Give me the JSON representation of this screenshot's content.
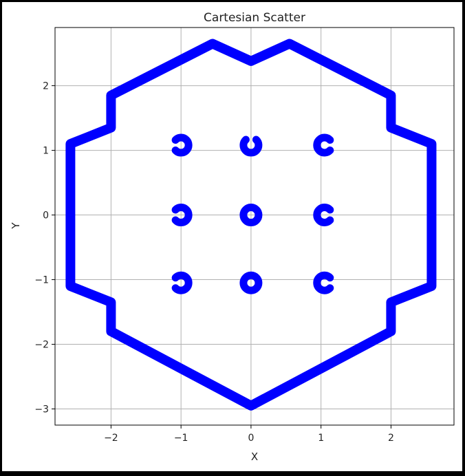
{
  "chart_data": {
    "type": "scatter",
    "title": "Cartesian Scatter",
    "xlabel": "X",
    "ylabel": "Y",
    "xlim": [
      -2.8,
      2.9
    ],
    "ylim": [
      -3.25,
      2.9
    ],
    "xticks": [
      -2,
      -1,
      0,
      1,
      2
    ],
    "yticks": [
      -3,
      -2,
      -1,
      0,
      1,
      2
    ],
    "xtick_labels": [
      "−2",
      "−1",
      "0",
      "1",
      "2"
    ],
    "ytick_labels": [
      "−3",
      "−2",
      "−1",
      "0",
      "1",
      "2"
    ],
    "grid": true,
    "marker_color": "#0000ff",
    "series": [
      {
        "outline": [
          [
            0,
            2.38
          ],
          [
            -0.55,
            2.65
          ],
          [
            -2.0,
            1.85
          ],
          [
            -2.0,
            1.35
          ],
          [
            -2.58,
            1.1
          ],
          [
            -2.58,
            -1.1
          ],
          [
            -2.0,
            -1.35
          ],
          [
            -2.0,
            -1.8
          ],
          [
            0,
            -2.95
          ],
          [
            2.0,
            -1.8
          ],
          [
            2.0,
            -1.35
          ],
          [
            2.58,
            -1.1
          ],
          [
            2.58,
            1.1
          ],
          [
            2.0,
            1.35
          ],
          [
            2.0,
            1.85
          ],
          [
            0.55,
            2.65
          ],
          [
            0,
            2.38
          ]
        ],
        "clusters": [
          {
            "x": -1.0,
            "y": 1.08,
            "gap_deg": 180
          },
          {
            "x": 0.0,
            "y": 1.08,
            "gap_deg": 90
          },
          {
            "x": 1.05,
            "y": 1.08,
            "gap_deg": 0
          },
          {
            "x": -1.0,
            "y": 0.0,
            "gap_deg": 180
          },
          {
            "x": 0.0,
            "y": 0.0,
            "gap_deg": null
          },
          {
            "x": 1.05,
            "y": 0.0,
            "gap_deg": 0
          },
          {
            "x": -1.0,
            "y": -1.05,
            "gap_deg": 180
          },
          {
            "x": 0.0,
            "y": -1.05,
            "gap_deg": null
          },
          {
            "x": 1.05,
            "y": -1.05,
            "gap_deg": 0
          }
        ]
      }
    ]
  }
}
